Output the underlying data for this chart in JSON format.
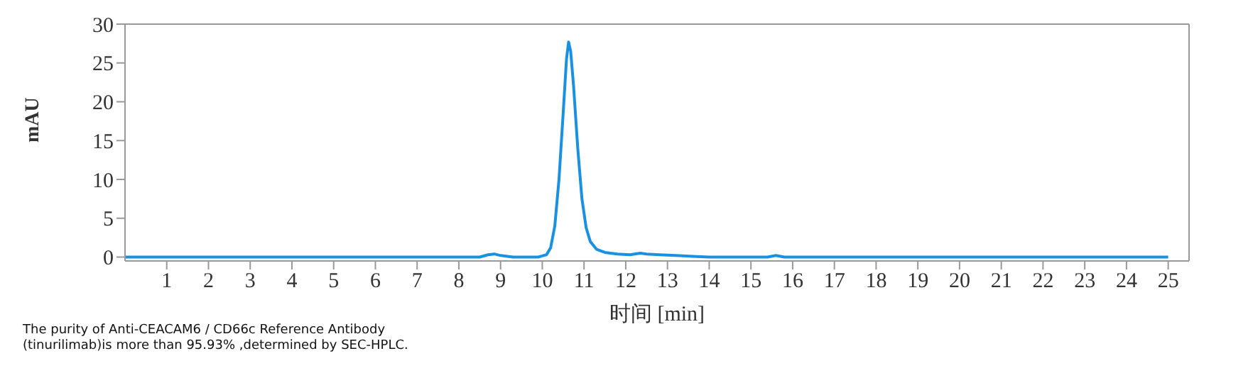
{
  "chart_data": {
    "type": "line",
    "xlabel": "时间 [min]",
    "ylabel": "mAU",
    "x": [
      0,
      8.5,
      8.7,
      8.85,
      9.0,
      9.3,
      9.9,
      10.1,
      10.2,
      10.3,
      10.4,
      10.5,
      10.58,
      10.63,
      10.68,
      10.75,
      10.85,
      10.95,
      11.05,
      11.15,
      11.3,
      11.5,
      11.8,
      12.1,
      12.35,
      12.5,
      12.8,
      13.2,
      13.6,
      14,
      15.4,
      15.6,
      15.8,
      25
    ],
    "series": [
      {
        "color": "#1a90e0",
        "values": [
          0,
          0,
          0.3,
          0.4,
          0.2,
          0,
          0,
          0.3,
          1.2,
          4,
          10,
          18.5,
          25.5,
          27.7,
          26.5,
          22,
          14,
          7.5,
          3.8,
          2,
          1.0,
          0.6,
          0.4,
          0.3,
          0.5,
          0.4,
          0.3,
          0.2,
          0.1,
          0,
          0,
          0.2,
          0,
          0
        ]
      }
    ],
    "xlim": [
      0,
      25.5
    ],
    "xticks": [
      1,
      2,
      3,
      4,
      5,
      6,
      7,
      8,
      9,
      10,
      11,
      12,
      13,
      14,
      15,
      16,
      17,
      18,
      19,
      20,
      21,
      22,
      23,
      24,
      25
    ],
    "ylim": [
      -0.5,
      30
    ],
    "yticks": [
      0,
      5,
      10,
      15,
      20,
      25,
      30
    ],
    "grid": false,
    "legend": false,
    "marker": "none",
    "line_style": "solid",
    "annotations": [
      "The purity of Anti-CEACAM6 / CD66c Reference Antibody (tinurilimab)is more than 95.93% ,determined by SEC-HPLC."
    ]
  }
}
